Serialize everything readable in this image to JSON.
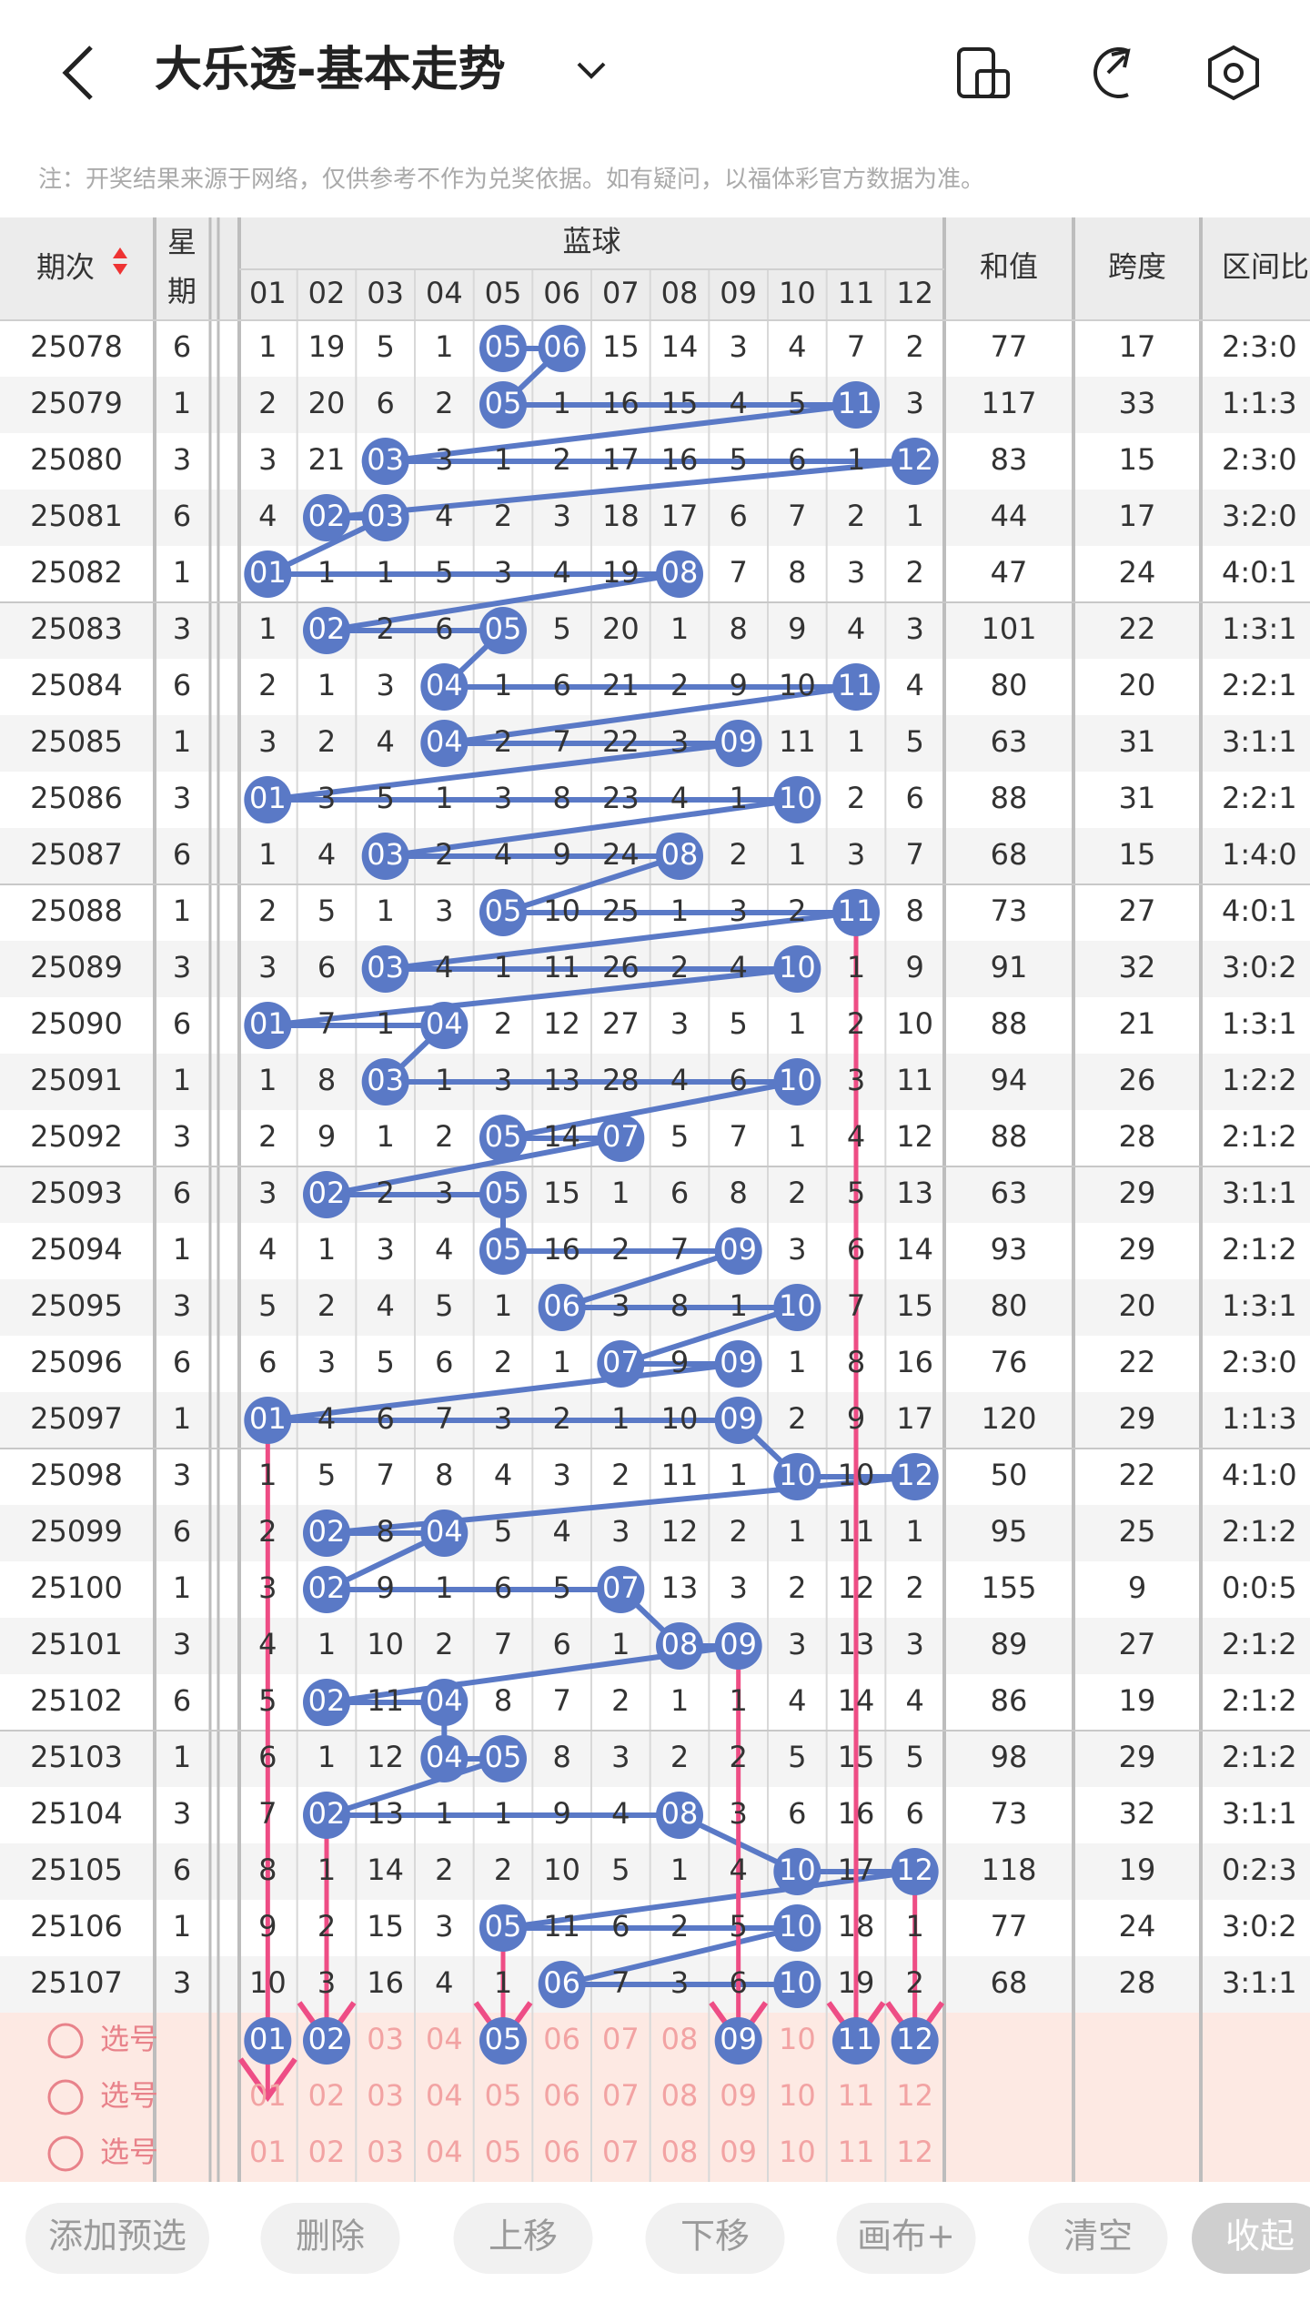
{
  "header": {
    "title": "大乐透-基本走势",
    "note": "注：开奖结果来源于网络，仅供参考不作为兑奖依据。如有疑问，以福体彩官方数据为准。"
  },
  "table": {
    "columns": {
      "period": "期次",
      "weekday_1": "星",
      "weekday_2": "期",
      "blue": "蓝球",
      "blue_numbers": [
        "01",
        "02",
        "03",
        "04",
        "05",
        "06",
        "07",
        "08",
        "09",
        "10",
        "11",
        "12"
      ],
      "sum": "和值",
      "span": "跨度",
      "ratio": "区间比"
    },
    "rows": [
      {
        "period": "25078",
        "weekday": "6",
        "cells": [
          "1",
          "19",
          "5",
          "1",
          {
            "text": "05",
            "hit": true
          },
          {
            "text": "06",
            "hit": true
          },
          "15",
          "14",
          "3",
          "4",
          "7",
          "2"
        ],
        "sum": "77",
        "span": "17",
        "ratio": "2:3:0"
      },
      {
        "period": "25079",
        "weekday": "1",
        "cells": [
          "2",
          "20",
          "6",
          "2",
          {
            "text": "05",
            "hit": true
          },
          "1",
          "16",
          "15",
          "4",
          "5",
          {
            "text": "11",
            "hit": true
          },
          "3"
        ],
        "sum": "117",
        "span": "33",
        "ratio": "1:1:3"
      },
      {
        "period": "25080",
        "weekday": "3",
        "cells": [
          "3",
          "21",
          {
            "text": "03",
            "hit": true
          },
          "3",
          "1",
          "2",
          "17",
          "16",
          "5",
          "6",
          "1",
          {
            "text": "12",
            "hit": true
          }
        ],
        "sum": "83",
        "span": "15",
        "ratio": "2:3:0"
      },
      {
        "period": "25081",
        "weekday": "6",
        "cells": [
          "4",
          {
            "text": "02",
            "hit": true
          },
          {
            "text": "03",
            "hit": true
          },
          "4",
          "2",
          "3",
          "18",
          "17",
          "6",
          "7",
          "2",
          "1"
        ],
        "sum": "44",
        "span": "17",
        "ratio": "3:2:0"
      },
      {
        "period": "25082",
        "weekday": "1",
        "cells": [
          {
            "text": "01",
            "hit": true
          },
          "1",
          "1",
          "5",
          "3",
          "4",
          "19",
          {
            "text": "08",
            "hit": true
          },
          "7",
          "8",
          "3",
          "2"
        ],
        "sum": "47",
        "span": "24",
        "ratio": "4:0:1"
      },
      {
        "period": "25083",
        "weekday": "3",
        "cells": [
          "1",
          {
            "text": "02",
            "hit": true
          },
          "2",
          "6",
          {
            "text": "05",
            "hit": true
          },
          "5",
          "20",
          "1",
          "8",
          "9",
          "4",
          "3"
        ],
        "sum": "101",
        "span": "22",
        "ratio": "1:3:1"
      },
      {
        "period": "25084",
        "weekday": "6",
        "cells": [
          "2",
          "1",
          "3",
          {
            "text": "04",
            "hit": true
          },
          "1",
          "6",
          "21",
          "2",
          "9",
          "10",
          {
            "text": "11",
            "hit": true
          },
          "4"
        ],
        "sum": "80",
        "span": "20",
        "ratio": "2:2:1"
      },
      {
        "period": "25085",
        "weekday": "1",
        "cells": [
          "3",
          "2",
          "4",
          {
            "text": "04",
            "hit": true
          },
          "2",
          "7",
          "22",
          "3",
          {
            "text": "09",
            "hit": true
          },
          "11",
          "1",
          "5"
        ],
        "sum": "63",
        "span": "31",
        "ratio": "3:1:1"
      },
      {
        "period": "25086",
        "weekday": "3",
        "cells": [
          {
            "text": "01",
            "hit": true
          },
          "3",
          "5",
          "1",
          "3",
          "8",
          "23",
          "4",
          "1",
          {
            "text": "10",
            "hit": true
          },
          "2",
          "6"
        ],
        "sum": "88",
        "span": "31",
        "ratio": "2:2:1"
      },
      {
        "period": "25087",
        "weekday": "6",
        "cells": [
          "1",
          "4",
          {
            "text": "03",
            "hit": true
          },
          "2",
          "4",
          "9",
          "24",
          {
            "text": "08",
            "hit": true
          },
          "2",
          "1",
          "3",
          "7"
        ],
        "sum": "68",
        "span": "15",
        "ratio": "1:4:0"
      },
      {
        "period": "25088",
        "weekday": "1",
        "cells": [
          "2",
          "5",
          "1",
          "3",
          {
            "text": "05",
            "hit": true
          },
          "10",
          "25",
          "1",
          "3",
          "2",
          {
            "text": "11",
            "hit": true
          },
          "8"
        ],
        "sum": "73",
        "span": "27",
        "ratio": "4:0:1"
      },
      {
        "period": "25089",
        "weekday": "3",
        "cells": [
          "3",
          "6",
          {
            "text": "03",
            "hit": true
          },
          "4",
          "1",
          "11",
          "26",
          "2",
          "4",
          {
            "text": "10",
            "hit": true
          },
          "1",
          "9"
        ],
        "sum": "91",
        "span": "32",
        "ratio": "3:0:2"
      },
      {
        "period": "25090",
        "weekday": "6",
        "cells": [
          {
            "text": "01",
            "hit": true
          },
          "7",
          "1",
          {
            "text": "04",
            "hit": true
          },
          "2",
          "12",
          "27",
          "3",
          "5",
          "1",
          "2",
          "10"
        ],
        "sum": "88",
        "span": "21",
        "ratio": "1:3:1"
      },
      {
        "period": "25091",
        "weekday": "1",
        "cells": [
          "1",
          "8",
          {
            "text": "03",
            "hit": true
          },
          "1",
          "3",
          "13",
          "28",
          "4",
          "6",
          {
            "text": "10",
            "hit": true
          },
          "3",
          "11"
        ],
        "sum": "94",
        "span": "26",
        "ratio": "1:2:2"
      },
      {
        "period": "25092",
        "weekday": "3",
        "cells": [
          "2",
          "9",
          "1",
          "2",
          {
            "text": "05",
            "hit": true
          },
          "14",
          {
            "text": "07",
            "hit": true
          },
          "5",
          "7",
          "1",
          "4",
          "12"
        ],
        "sum": "88",
        "span": "28",
        "ratio": "2:1:2"
      },
      {
        "period": "25093",
        "weekday": "6",
        "cells": [
          "3",
          {
            "text": "02",
            "hit": true
          },
          "2",
          "3",
          {
            "text": "05",
            "hit": true
          },
          "15",
          "1",
          "6",
          "8",
          "2",
          "5",
          "13"
        ],
        "sum": "63",
        "span": "29",
        "ratio": "3:1:1"
      },
      {
        "period": "25094",
        "weekday": "1",
        "cells": [
          "4",
          "1",
          "3",
          "4",
          {
            "text": "05",
            "hit": true
          },
          "16",
          "2",
          "7",
          {
            "text": "09",
            "hit": true
          },
          "3",
          "6",
          "14"
        ],
        "sum": "93",
        "span": "29",
        "ratio": "2:1:2"
      },
      {
        "period": "25095",
        "weekday": "3",
        "cells": [
          "5",
          "2",
          "4",
          "5",
          "1",
          {
            "text": "06",
            "hit": true
          },
          "3",
          "8",
          "1",
          {
            "text": "10",
            "hit": true
          },
          "7",
          "15"
        ],
        "sum": "80",
        "span": "20",
        "ratio": "1:3:1"
      },
      {
        "period": "25096",
        "weekday": "6",
        "cells": [
          "6",
          "3",
          "5",
          "6",
          "2",
          "1",
          {
            "text": "07",
            "hit": true
          },
          "9",
          {
            "text": "09",
            "hit": true
          },
          "1",
          "8",
          "16"
        ],
        "sum": "76",
        "span": "22",
        "ratio": "2:3:0"
      },
      {
        "period": "25097",
        "weekday": "1",
        "cells": [
          {
            "text": "01",
            "hit": true
          },
          "4",
          "6",
          "7",
          "3",
          "2",
          "1",
          "10",
          {
            "text": "09",
            "hit": true
          },
          "2",
          "9",
          "17"
        ],
        "sum": "120",
        "span": "29",
        "ratio": "1:1:3"
      },
      {
        "period": "25098",
        "weekday": "3",
        "cells": [
          "1",
          "5",
          "7",
          "8",
          "4",
          "3",
          "2",
          "11",
          "1",
          {
            "text": "10",
            "hit": true
          },
          "10",
          {
            "text": "12",
            "hit": true
          }
        ],
        "sum": "50",
        "span": "22",
        "ratio": "4:1:0"
      },
      {
        "period": "25099",
        "weekday": "6",
        "cells": [
          "2",
          {
            "text": "02",
            "hit": true
          },
          "8",
          {
            "text": "04",
            "hit": true
          },
          "5",
          "4",
          "3",
          "12",
          "2",
          "1",
          "11",
          "1"
        ],
        "sum": "95",
        "span": "25",
        "ratio": "2:1:2"
      },
      {
        "period": "25100",
        "weekday": "1",
        "cells": [
          "3",
          {
            "text": "02",
            "hit": true
          },
          "9",
          "1",
          "6",
          "5",
          {
            "text": "07",
            "hit": true
          },
          "13",
          "3",
          "2",
          "12",
          "2"
        ],
        "sum": "155",
        "span": "9",
        "ratio": "0:0:5"
      },
      {
        "period": "25101",
        "weekday": "3",
        "cells": [
          "4",
          "1",
          "10",
          "2",
          "7",
          "6",
          "1",
          {
            "text": "08",
            "hit": true
          },
          {
            "text": "09",
            "hit": true
          },
          "3",
          "13",
          "3"
        ],
        "sum": "89",
        "span": "27",
        "ratio": "2:1:2"
      },
      {
        "period": "25102",
        "weekday": "6",
        "cells": [
          "5",
          {
            "text": "02",
            "hit": true
          },
          "11",
          {
            "text": "04",
            "hit": true
          },
          "8",
          "7",
          "2",
          "1",
          "1",
          "4",
          "14",
          "4"
        ],
        "sum": "86",
        "span": "19",
        "ratio": "2:1:2"
      },
      {
        "period": "25103",
        "weekday": "1",
        "cells": [
          "6",
          "1",
          "12",
          {
            "text": "04",
            "hit": true
          },
          {
            "text": "05",
            "hit": true
          },
          "8",
          "3",
          "2",
          "2",
          "5",
          "15",
          "5"
        ],
        "sum": "98",
        "span": "29",
        "ratio": "2:1:2"
      },
      {
        "period": "25104",
        "weekday": "3",
        "cells": [
          "7",
          {
            "text": "02",
            "hit": true
          },
          "13",
          "1",
          "1",
          "9",
          "4",
          {
            "text": "08",
            "hit": true
          },
          "3",
          "6",
          "16",
          "6"
        ],
        "sum": "73",
        "span": "32",
        "ratio": "3:1:1"
      },
      {
        "period": "25105",
        "weekday": "6",
        "cells": [
          "8",
          "1",
          "14",
          "2",
          "2",
          "10",
          "5",
          "1",
          "4",
          {
            "text": "10",
            "hit": true
          },
          "17",
          {
            "text": "12",
            "hit": true
          }
        ],
        "sum": "118",
        "span": "19",
        "ratio": "0:2:3"
      },
      {
        "period": "25106",
        "weekday": "1",
        "cells": [
          "9",
          "2",
          "15",
          "3",
          {
            "text": "05",
            "hit": true
          },
          "11",
          "6",
          "2",
          "5",
          {
            "text": "10",
            "hit": true
          },
          "18",
          "1"
        ],
        "sum": "77",
        "span": "24",
        "ratio": "3:0:2"
      },
      {
        "period": "25107",
        "weekday": "3",
        "cells": [
          "10",
          "3",
          "16",
          "4",
          "1",
          {
            "text": "06",
            "hit": true
          },
          "7",
          "3",
          "6",
          {
            "text": "10",
            "hit": true
          },
          "19",
          "2"
        ],
        "sum": "68",
        "span": "28",
        "ratio": "3:1:1"
      }
    ]
  },
  "picker": {
    "rows": [
      {
        "label": "选号",
        "numbers": [
          {
            "text": "01",
            "selected": true
          },
          {
            "text": "02",
            "selected": true
          },
          "03",
          "04",
          {
            "text": "05",
            "selected": true
          },
          "06",
          "07",
          "08",
          {
            "text": "09",
            "selected": true
          },
          "10",
          {
            "text": "11",
            "selected": true
          },
          {
            "text": "12",
            "selected": true
          }
        ]
      },
      {
        "label": "选号",
        "numbers": [
          "01",
          "02",
          "03",
          "04",
          "05",
          "06",
          "07",
          "08",
          "09",
          "10",
          "11",
          "12"
        ]
      },
      {
        "label": "选号",
        "numbers": [
          "01",
          "02",
          "03",
          "04",
          "05",
          "06",
          "07",
          "08",
          "09",
          "10",
          "11",
          "12"
        ]
      }
    ]
  },
  "buttons": [
    "添加预选",
    "删除",
    "上移",
    "下移",
    "画布+",
    "清空",
    "收起"
  ]
}
